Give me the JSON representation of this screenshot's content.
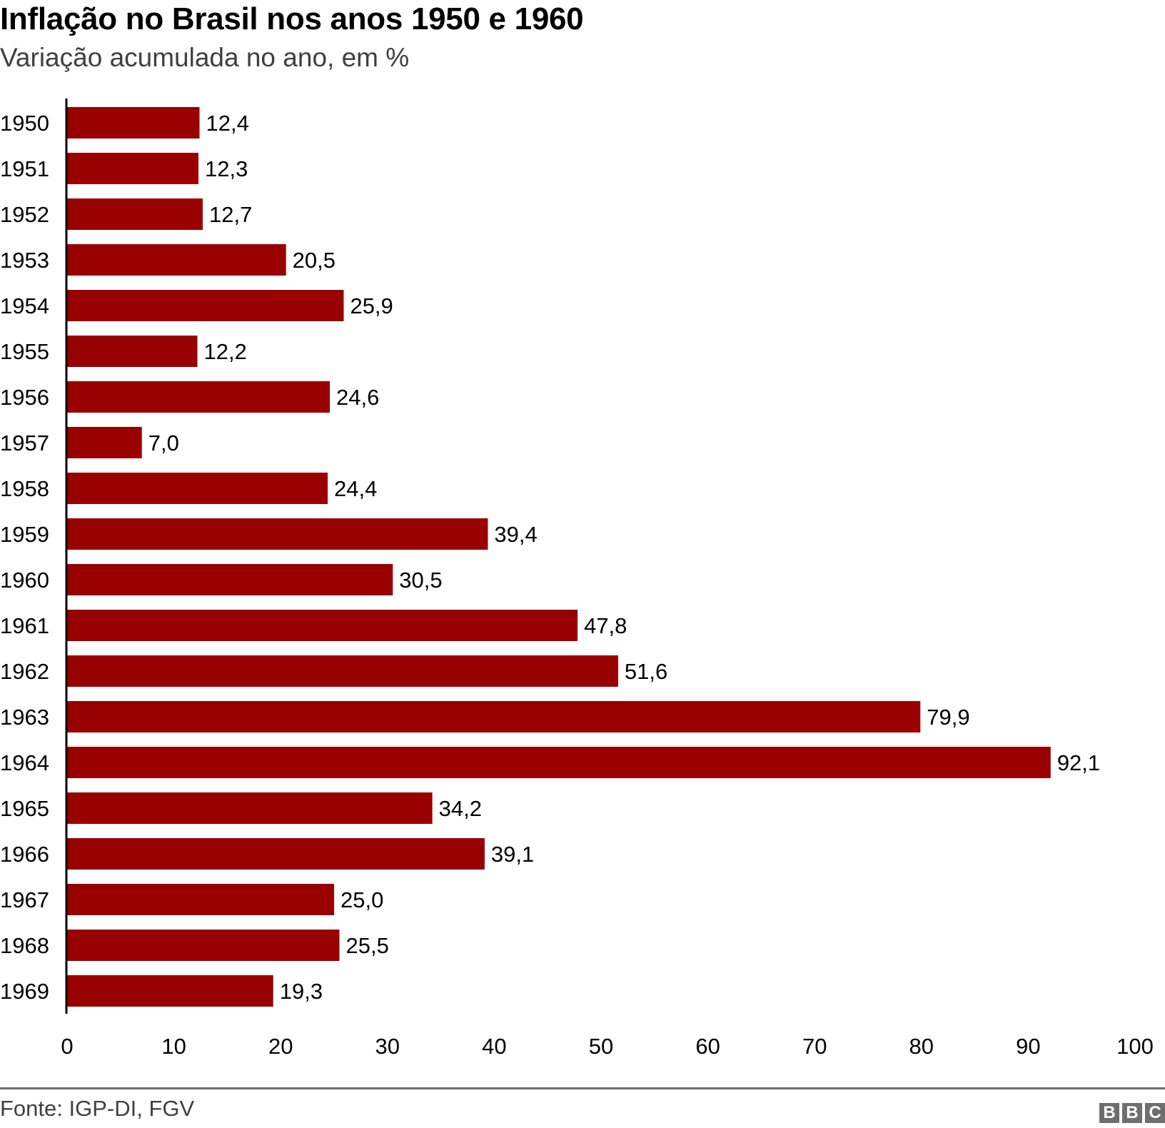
{
  "chart_data": {
    "type": "bar",
    "orientation": "horizontal",
    "title": "Inflação no Brasil nos anos 1950 e 1960",
    "subtitle": "Variação acumulada no ano, em %",
    "xlabel": "",
    "ylabel": "",
    "categories": [
      "1950",
      "1951",
      "1952",
      "1953",
      "1954",
      "1955",
      "1956",
      "1957",
      "1958",
      "1959",
      "1960",
      "1961",
      "1962",
      "1963",
      "1964",
      "1965",
      "1966",
      "1967",
      "1968",
      "1969"
    ],
    "values": [
      12.4,
      12.3,
      12.7,
      20.5,
      25.9,
      12.2,
      24.6,
      7.0,
      24.4,
      39.4,
      30.5,
      47.8,
      51.6,
      79.9,
      92.1,
      34.2,
      39.1,
      25.0,
      25.5,
      19.3
    ],
    "value_labels": [
      "12,4",
      "12,3",
      "12,7",
      "20,5",
      "25,9",
      "12,2",
      "24,6",
      "7,0",
      "24,4",
      "39,4",
      "30,5",
      "47,8",
      "51,6",
      "79,9",
      "92,1",
      "34,2",
      "39,1",
      "25,0",
      "25,5",
      "19,3"
    ],
    "xlim": [
      0,
      100
    ],
    "xticks": [
      0,
      10,
      20,
      30,
      40,
      50,
      60,
      70,
      80,
      90,
      100
    ],
    "grid": false,
    "legend": "none",
    "bar_color": "#990000"
  },
  "footer": {
    "source": "Fonte: IGP-DI, FGV",
    "logo_letters": [
      "B",
      "B",
      "C"
    ]
  }
}
